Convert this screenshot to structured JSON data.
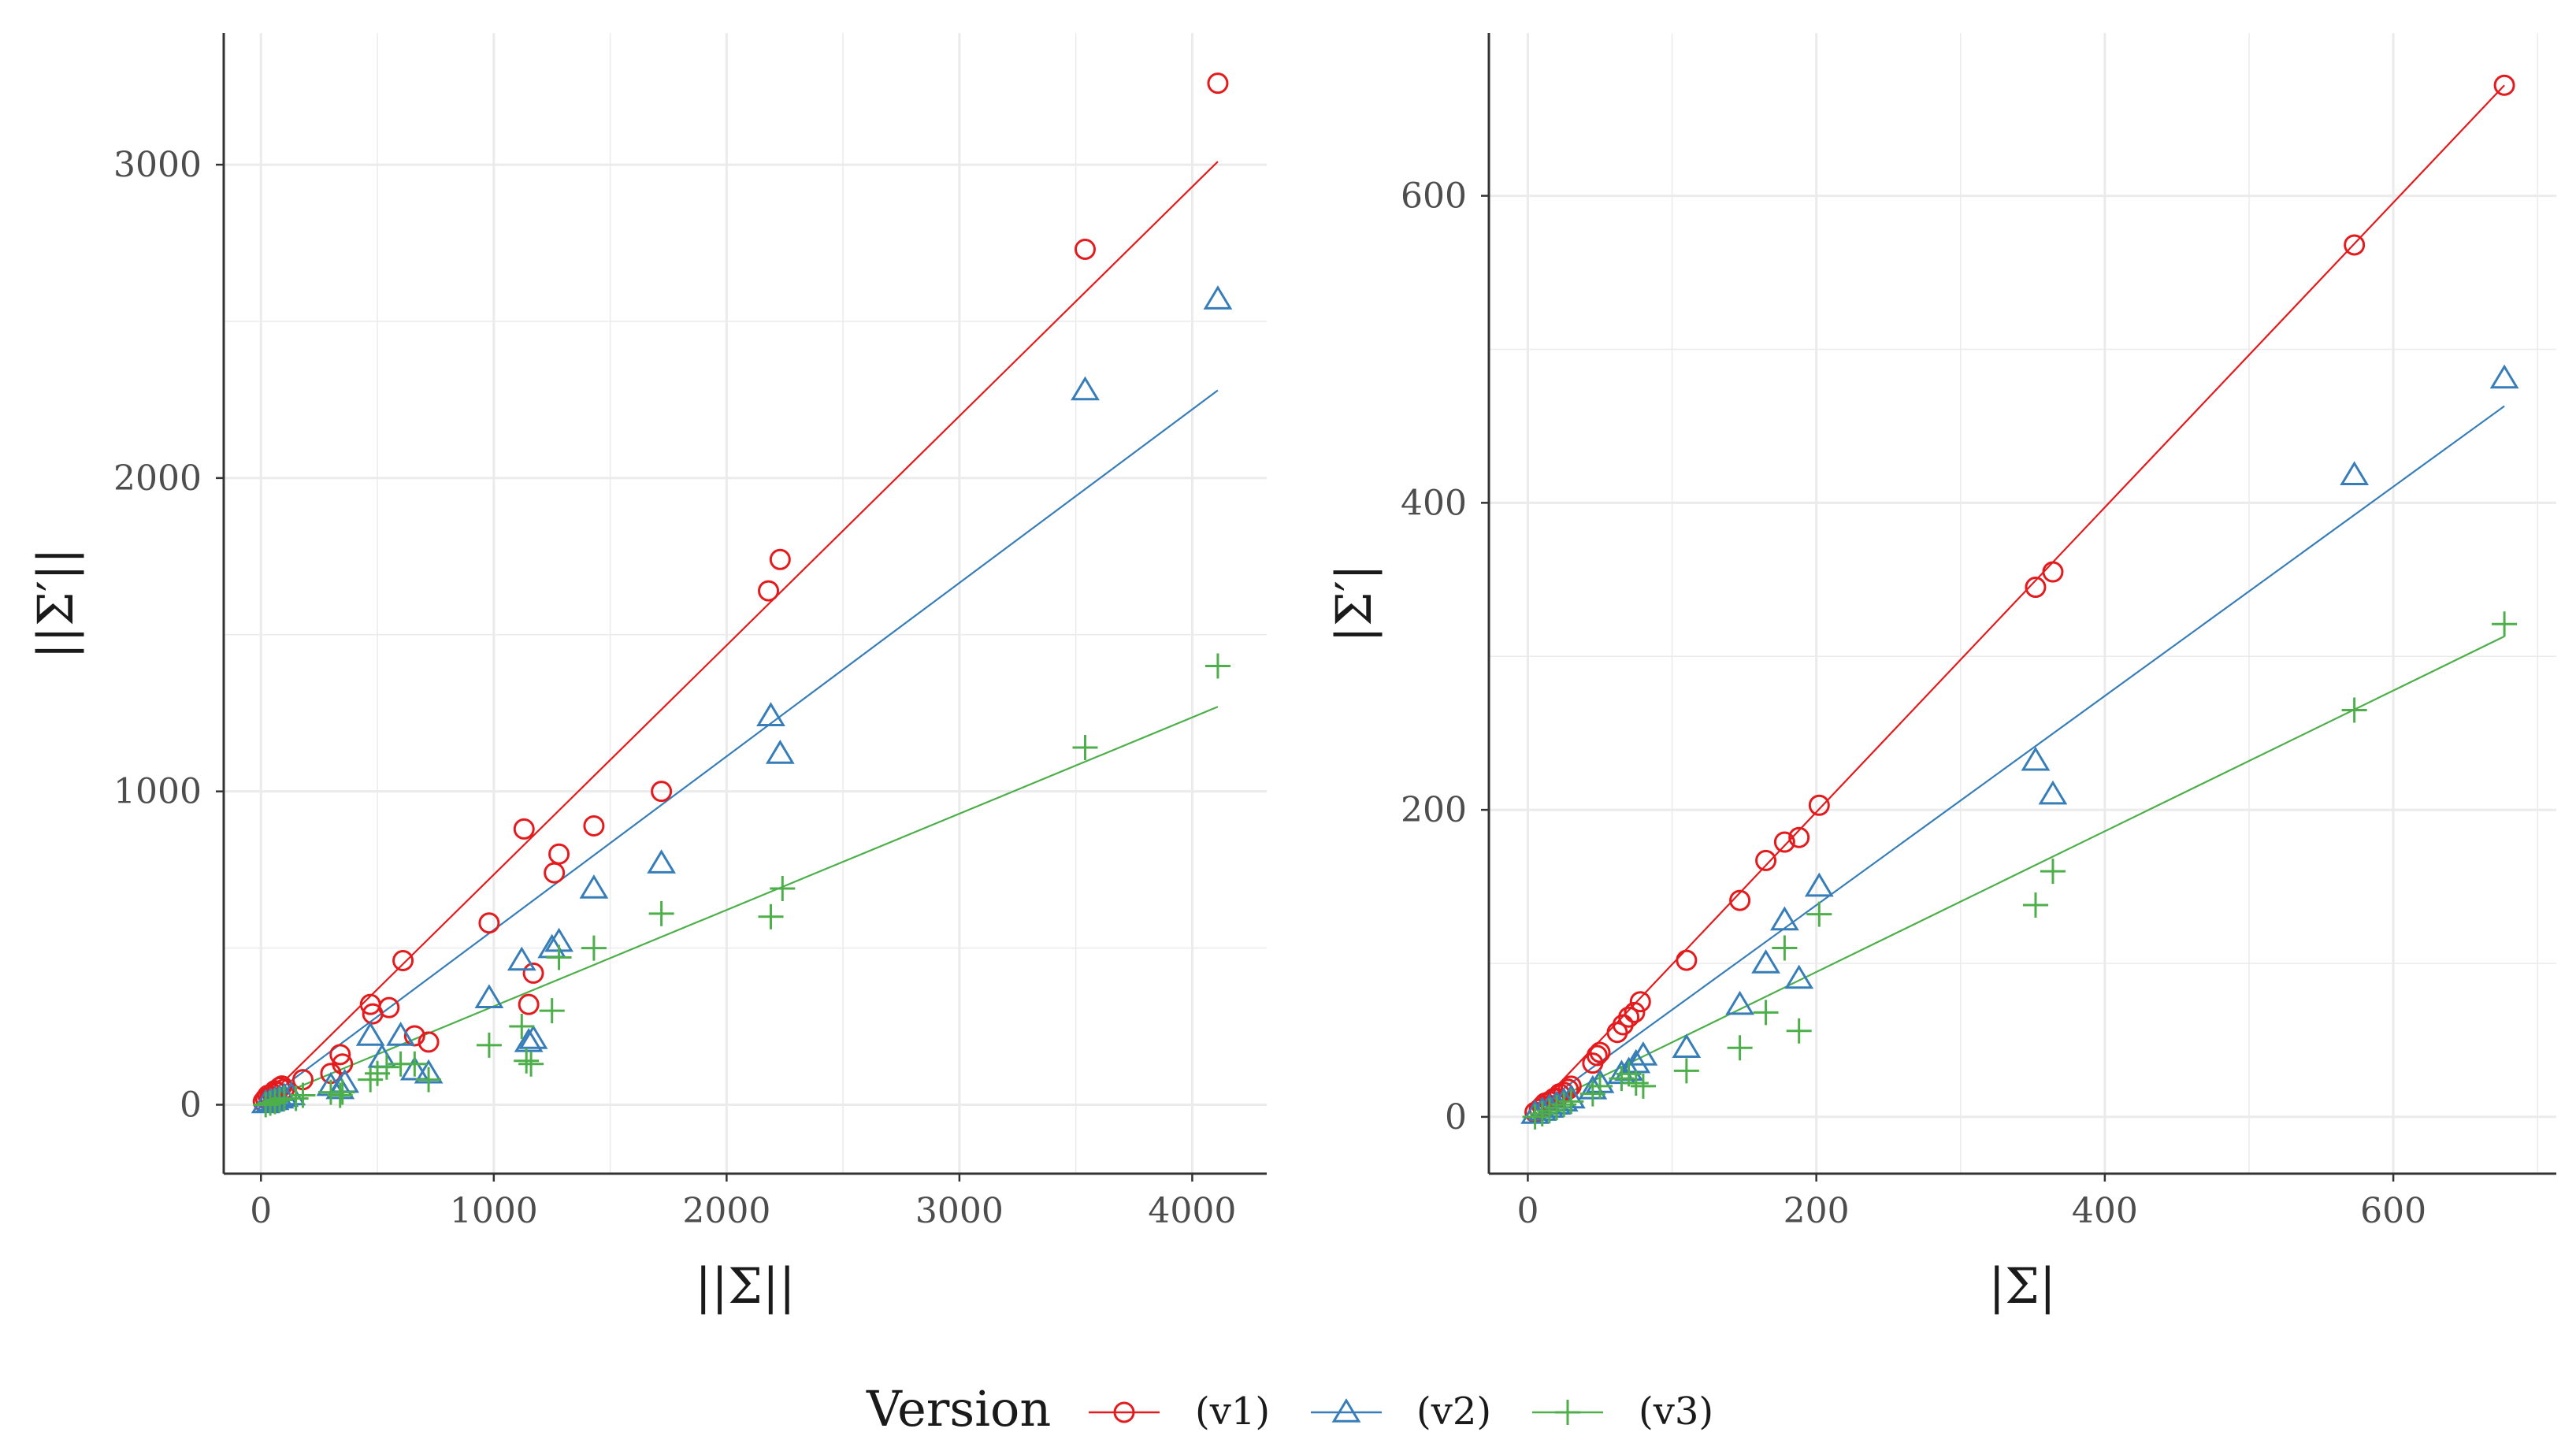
{
  "colors": {
    "v1": "#e41a1c",
    "v2": "#377eb8",
    "v3": "#4daf4a",
    "grid": "#ebebeb",
    "axis": "#333333"
  },
  "legend": {
    "title": "Version",
    "entries": [
      {
        "key": "v1",
        "label": "(v1)",
        "shape": "circle"
      },
      {
        "key": "v2",
        "label": "(v2)",
        "shape": "triangle"
      },
      {
        "key": "v3",
        "label": "(v3)",
        "shape": "plus"
      }
    ]
  },
  "chart_data": [
    {
      "type": "scatter",
      "xlabel": "||Σ||",
      "ylabel": "||Σ′||",
      "xlim": [
        -160,
        4320
      ],
      "ylim": [
        -220,
        3420
      ],
      "xticks": [
        0,
        1000,
        2000,
        3000,
        4000
      ],
      "yticks": [
        0,
        1000,
        2000,
        3000
      ],
      "xminor": [
        500,
        1500,
        2500,
        3500
      ],
      "yminor": [
        500,
        1500,
        2500
      ],
      "series": [
        {
          "name": "(v1)",
          "key": "v1",
          "shape": "circle",
          "fit": {
            "x": [
              10,
              4110
            ],
            "y": [
              10,
              3010
            ]
          },
          "x": [
            10,
            20,
            30,
            40,
            50,
            60,
            70,
            80,
            90,
            100,
            180,
            300,
            340,
            350,
            470,
            480,
            550,
            610,
            660,
            720,
            980,
            1130,
            1150,
            1170,
            1260,
            1280,
            1430,
            1720,
            2180,
            2230,
            3540,
            4110
          ],
          "y": [
            10,
            20,
            30,
            25,
            35,
            45,
            40,
            55,
            60,
            50,
            80,
            100,
            160,
            130,
            320,
            290,
            310,
            460,
            220,
            200,
            580,
            880,
            320,
            420,
            740,
            800,
            890,
            1000,
            1640,
            1740,
            2730,
            3260
          ]
        },
        {
          "name": "(v2)",
          "key": "v2",
          "shape": "triangle",
          "fit": {
            "x": [
              10,
              4110
            ],
            "y": [
              10,
              2280
            ]
          },
          "x": [
            20,
            40,
            60,
            80,
            100,
            130,
            300,
            340,
            360,
            470,
            520,
            600,
            660,
            720,
            980,
            1120,
            1150,
            1170,
            1250,
            1280,
            1430,
            1720,
            2190,
            2230,
            3540,
            4110
          ],
          "y": [
            5,
            10,
            15,
            20,
            25,
            30,
            60,
            50,
            70,
            220,
            150,
            220,
            110,
            100,
            340,
            460,
            200,
            210,
            500,
            520,
            690,
            770,
            1240,
            1120,
            2280,
            2570
          ]
        },
        {
          "name": "(v3)",
          "key": "v3",
          "shape": "plus",
          "fit": {
            "x": [
              10,
              4110
            ],
            "y": [
              10,
              1270
            ]
          },
          "x": [
            20,
            40,
            60,
            80,
            100,
            150,
            180,
            300,
            340,
            350,
            470,
            500,
            540,
            600,
            660,
            720,
            980,
            1120,
            1140,
            1160,
            1250,
            1280,
            1430,
            1720,
            2190,
            2240,
            3540,
            4110
          ],
          "y": [
            0,
            5,
            10,
            15,
            20,
            20,
            30,
            40,
            30,
            40,
            80,
            100,
            120,
            130,
            130,
            80,
            190,
            250,
            140,
            130,
            300,
            470,
            500,
            610,
            600,
            690,
            1140,
            1400
          ]
        }
      ]
    },
    {
      "type": "scatter",
      "xlabel": "|Σ|",
      "ylabel": "|Σ′|",
      "xlim": [
        -27,
        713
      ],
      "ylim": [
        -37,
        706
      ],
      "xticks": [
        0,
        200,
        400,
        600
      ],
      "yticks": [
        0,
        200,
        400,
        600
      ],
      "xminor": [
        100,
        300,
        500,
        700
      ],
      "yminor": [
        100,
        300,
        500
      ],
      "series": [
        {
          "name": "(v1)",
          "key": "v1",
          "shape": "circle",
          "fit": {
            "x": [
              5,
              677
            ],
            "y": [
              5,
              672
            ]
          },
          "x": [
            5,
            8,
            10,
            12,
            15,
            18,
            20,
            22,
            25,
            28,
            30,
            45,
            48,
            50,
            62,
            66,
            70,
            74,
            78,
            110,
            147,
            165,
            178,
            188,
            202,
            352,
            364,
            573,
            677
          ],
          "y": [
            3,
            5,
            7,
            9,
            10,
            12,
            12,
            15,
            16,
            18,
            20,
            35,
            40,
            42,
            55,
            60,
            65,
            68,
            75,
            102,
            141,
            167,
            179,
            182,
            203,
            345,
            355,
            568,
            672
          ],
          "hidden": false
        },
        {
          "name": "(v2)",
          "key": "v2",
          "shape": "triangle",
          "fit": {
            "x": [
              5,
              677
            ],
            "y": [
              5,
              463
            ]
          },
          "x": [
            5,
            10,
            15,
            20,
            25,
            30,
            45,
            50,
            65,
            70,
            75,
            80,
            110,
            147,
            165,
            178,
            188,
            202,
            352,
            364,
            573,
            677
          ],
          "y": [
            2,
            4,
            6,
            8,
            10,
            12,
            18,
            22,
            28,
            30,
            35,
            40,
            45,
            73,
            100,
            128,
            90,
            150,
            232,
            210,
            418,
            481
          ]
        },
        {
          "name": "(v3)",
          "key": "v3",
          "shape": "plus",
          "fit": {
            "x": [
              5,
              677
            ],
            "y": [
              5,
              313
            ]
          },
          "x": [
            5,
            10,
            15,
            20,
            25,
            30,
            45,
            50,
            65,
            70,
            75,
            80,
            110,
            147,
            165,
            178,
            188,
            202,
            352,
            364,
            573,
            677
          ],
          "y": [
            0,
            2,
            4,
            6,
            8,
            10,
            15,
            20,
            25,
            28,
            22,
            20,
            30,
            45,
            68,
            110,
            56,
            132,
            138,
            160,
            265,
            321
          ]
        }
      ]
    }
  ]
}
